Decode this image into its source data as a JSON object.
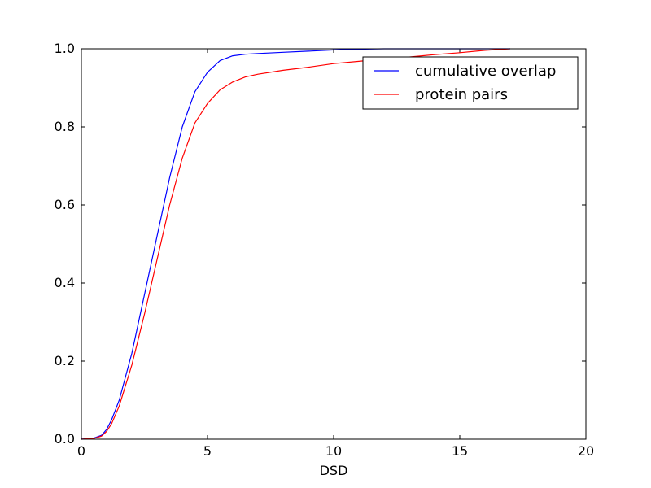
{
  "chart_data": {
    "type": "line",
    "title": "",
    "xlabel": "DSD",
    "ylabel": "",
    "xlim": [
      0,
      20
    ],
    "ylim": [
      0,
      1.0
    ],
    "xticks": [
      0,
      5,
      10,
      15,
      20
    ],
    "xtick_labels": [
      "0",
      "5",
      "10",
      "15",
      "20"
    ],
    "yticks": [
      0.0,
      0.2,
      0.4,
      0.6,
      0.8,
      1.0
    ],
    "ytick_labels": [
      "0.0",
      "0.2",
      "0.4",
      "0.6",
      "0.8",
      "1.0"
    ],
    "grid": false,
    "legend": {
      "placement": "top-right"
    },
    "series": [
      {
        "name": "cumulative overlap",
        "color": "#0000ff",
        "x": [
          0,
          0.5,
          0.8,
          1.0,
          1.2,
          1.5,
          2.0,
          2.5,
          3.0,
          3.5,
          4.0,
          4.5,
          5.0,
          5.5,
          6.0,
          6.5,
          7.0,
          8.0,
          9.0,
          10.0,
          11.0,
          12.0,
          14.0,
          16.0,
          17.0
        ],
        "y": [
          0.0,
          0.003,
          0.01,
          0.025,
          0.05,
          0.1,
          0.22,
          0.37,
          0.52,
          0.67,
          0.8,
          0.89,
          0.94,
          0.97,
          0.982,
          0.986,
          0.988,
          0.991,
          0.994,
          0.997,
          0.999,
          1.0,
          1.0,
          1.0,
          1.0
        ]
      },
      {
        "name": "protein pairs",
        "color": "#ff0000",
        "x": [
          0,
          0.5,
          0.8,
          1.0,
          1.2,
          1.5,
          2.0,
          2.5,
          3.0,
          3.5,
          4.0,
          4.5,
          5.0,
          5.5,
          6.0,
          6.5,
          7.0,
          8.0,
          9.0,
          10.0,
          11.0,
          12.0,
          13.0,
          14.0,
          15.0,
          16.0,
          17.0
        ],
        "y": [
          0.0,
          0.002,
          0.008,
          0.02,
          0.04,
          0.085,
          0.19,
          0.32,
          0.46,
          0.6,
          0.72,
          0.81,
          0.86,
          0.895,
          0.915,
          0.928,
          0.935,
          0.945,
          0.953,
          0.962,
          0.968,
          0.974,
          0.979,
          0.985,
          0.99,
          0.996,
          1.0
        ]
      }
    ]
  }
}
